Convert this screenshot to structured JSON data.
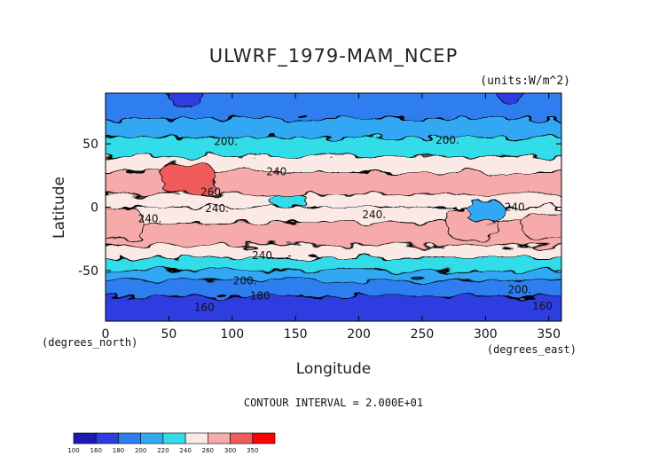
{
  "chart_data": {
    "type": "heatmap",
    "title": "ULWRF_1979-MAM_NCEP",
    "units": "(units:W/m^2)",
    "xlabel": "Longitude",
    "ylabel": "Latitude",
    "x_unit_note": "(degrees_east)",
    "y_unit_note": "(degrees_north)",
    "xlim": [
      0,
      360
    ],
    "ylim": [
      -90,
      90
    ],
    "x_ticks": [
      0,
      50,
      100,
      150,
      200,
      250,
      300,
      350
    ],
    "y_ticks": [
      50,
      0,
      -50
    ],
    "contour_interval_text": "CONTOUR INTERVAL = 2.000E+01",
    "contour_labels": [
      {
        "text": "200.",
        "x": 95,
        "y": 52
      },
      {
        "text": "200.",
        "x": 270,
        "y": 53
      },
      {
        "text": "240",
        "x": 135,
        "y": 28
      },
      {
        "text": "260",
        "x": 83,
        "y": 12
      },
      {
        "text": "240.",
        "x": 88,
        "y": -1
      },
      {
        "text": "240.",
        "x": 35,
        "y": -9
      },
      {
        "text": "240.",
        "x": 212,
        "y": -6
      },
      {
        "text": "240",
        "x": 323,
        "y": 0
      },
      {
        "text": "240.",
        "x": 125,
        "y": -38
      },
      {
        "text": "200.",
        "x": 110,
        "y": -58
      },
      {
        "text": "200.",
        "x": 327,
        "y": -65
      },
      {
        "text": "180",
        "x": 122,
        "y": -70
      },
      {
        "text": "160",
        "x": 78,
        "y": -79
      },
      {
        "text": "160",
        "x": 345,
        "y": -78
      }
    ],
    "zones": [
      {
        "lat": [
          70,
          90
        ],
        "lon": [
          0,
          360
        ],
        "value": 190
      },
      {
        "lat": [
          55,
          70
        ],
        "lon": [
          0,
          360
        ],
        "value": 210
      },
      {
        "lat": [
          40,
          55
        ],
        "lon": [
          0,
          360
        ],
        "value": 230
      },
      {
        "lat": [
          28,
          40
        ],
        "lon": [
          0,
          360
        ],
        "value": 250
      },
      {
        "lat": [
          10,
          28
        ],
        "lon": [
          0,
          360
        ],
        "value": 270
      },
      {
        "lat": [
          0,
          10
        ],
        "lon": [
          0,
          360
        ],
        "value": 240
      },
      {
        "lat": [
          -12,
          0
        ],
        "lon": [
          0,
          360
        ],
        "value": 250
      },
      {
        "lat": [
          -30,
          -12
        ],
        "lon": [
          0,
          360
        ],
        "value": 260
      },
      {
        "lat": [
          -40,
          -30
        ],
        "lon": [
          0,
          360
        ],
        "value": 250
      },
      {
        "lat": [
          -50,
          -40
        ],
        "lon": [
          0,
          360
        ],
        "value": 230
      },
      {
        "lat": [
          -58,
          -50
        ],
        "lon": [
          0,
          360
        ],
        "value": 210
      },
      {
        "lat": [
          -70,
          -58
        ],
        "lon": [
          0,
          360
        ],
        "value": 190
      },
      {
        "lat": [
          -90,
          -70
        ],
        "lon": [
          0,
          360
        ],
        "value": 165
      },
      {
        "lat": [
          10,
          35
        ],
        "lon": [
          45,
          85
        ],
        "value": 310
      },
      {
        "lat": [
          -25,
          0
        ],
        "lon": [
          0,
          28
        ],
        "value": 270
      },
      {
        "lat": [
          -25,
          0
        ],
        "lon": [
          270,
          310
        ],
        "value": 270
      },
      {
        "lat": [
          -25,
          -5
        ],
        "lon": [
          330,
          360
        ],
        "value": 270
      },
      {
        "lat": [
          -12,
          5
        ],
        "lon": [
          285,
          315
        ],
        "value": 200
      },
      {
        "lat": [
          0,
          10
        ],
        "lon": [
          130,
          160
        ],
        "value": 220
      },
      {
        "lat": [
          80,
          90
        ],
        "lon": [
          50,
          75
        ],
        "value": 170
      },
      {
        "lat": [
          82,
          90
        ],
        "lon": [
          310,
          330
        ],
        "value": 170
      }
    ],
    "colorbar": {
      "levels": [
        100,
        160,
        180,
        200,
        220,
        240,
        260,
        300,
        350
      ],
      "colors": [
        "#1b1bb2",
        "#2e3de0",
        "#2f7ef0",
        "#33a8f5",
        "#33dce8",
        "#fbe9e6",
        "#f6aaaa",
        "#f05c5c",
        "#ff0000"
      ]
    }
  }
}
